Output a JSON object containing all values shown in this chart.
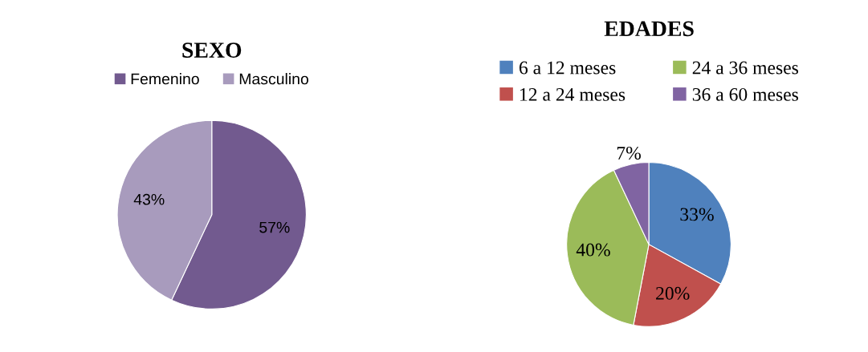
{
  "chart_data": [
    {
      "type": "pie",
      "title": "SEXO",
      "categories": [
        "Femenino",
        "Masculino"
      ],
      "values": [
        57,
        43
      ],
      "colors": [
        "#725a8f",
        "#a89bbd"
      ],
      "value_labels": [
        "57%",
        "43%"
      ],
      "legend": "top"
    },
    {
      "type": "pie",
      "title": "EDADES",
      "categories": [
        "6 a 12 meses",
        "12 a 24 meses",
        "24 a 36 meses",
        "36 a 60 meses"
      ],
      "values": [
        33,
        20,
        40,
        7
      ],
      "colors": [
        "#4f81bd",
        "#c0504d",
        "#9bbb59",
        "#8064a2"
      ],
      "value_labels": [
        "33%",
        "20%",
        "40%",
        "7%"
      ],
      "legend": "top"
    }
  ]
}
